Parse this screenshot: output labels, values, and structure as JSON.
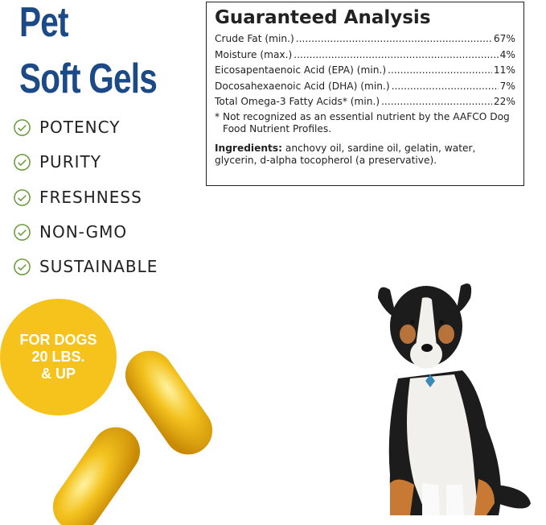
{
  "title": {
    "line1": "Pet",
    "line2": "Soft Gels"
  },
  "features": [
    {
      "label": "POTENCY",
      "icon": "check-circle-icon"
    },
    {
      "label": "PURITY",
      "icon": "check-circle-icon"
    },
    {
      "label": "FRESHNESS",
      "icon": "check-circle-icon"
    },
    {
      "label": "NON-GMO",
      "icon": "check-circle-icon"
    },
    {
      "label": "SUSTAINABLE",
      "icon": "check-circle-icon"
    }
  ],
  "analysis": {
    "heading": "Guaranteed Analysis",
    "rows": [
      {
        "name": "Crude Fat (min.)",
        "value": "67%"
      },
      {
        "name": "Moisture (max.)",
        "value": "4%"
      },
      {
        "name": "Eicosapentaenoic Acid (EPA) (min.)",
        "value": "11%"
      },
      {
        "name": "Docosahexaenoic Acid (DHA) (min.)",
        "value": "7%"
      },
      {
        "name": "Total Omega-3 Fatty Acids* (min.)",
        "value": "22%"
      }
    ],
    "footnote": "* Not recognized as an essential nutrient by the AAFCO Dog Food Nutrient Profiles.",
    "ingredients_label": "Ingredients:",
    "ingredients": " anchovy oil, sardine oil, gelatin, water, glycerin, d-alpha tocopherol (a preservative)."
  },
  "badge": {
    "line1": "FOR DOGS",
    "line2": "20 LBS.",
    "line3": "& UP"
  },
  "colors": {
    "brand_blue": "#1b4a86",
    "check_green": "#6a9a3c",
    "badge_yellow": "#f6c21c"
  }
}
